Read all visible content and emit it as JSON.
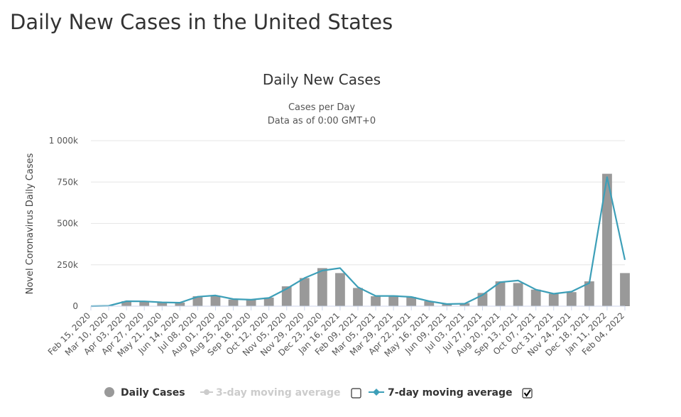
{
  "page": {
    "title": "Daily New Cases in the United States"
  },
  "chart_data": {
    "type": "bar",
    "title": "Daily New Cases",
    "subtitle_lines": [
      "Cases per Day",
      "Data as of 0:00 GMT+0"
    ],
    "ylabel": "Novel Coronavirus Daily Cases",
    "xlabel": "",
    "ylim": [
      0,
      1000000
    ],
    "y_ticks": [
      0,
      250000,
      500000,
      750000,
      1000000
    ],
    "y_tick_labels": [
      "0",
      "250k",
      "500k",
      "750k",
      "1 000k"
    ],
    "x_tick_labels": [
      "Feb 15, 2020",
      "Mar 10, 2020",
      "Apr 03, 2020",
      "Apr 27, 2020",
      "May 21, 2020",
      "Jun 14, 2020",
      "Jul 08, 2020",
      "Aug 01, 2020",
      "Aug 25, 2020",
      "Sep 18, 2020",
      "Oct 12, 2020",
      "Nov 05, 2020",
      "Nov 29, 2020",
      "Dec 23, 2020",
      "Jan 16, 2021",
      "Feb 09, 2021",
      "Mar 05, 2021",
      "Mar 29, 2021",
      "Apr 22, 2021",
      "May 16, 2021",
      "Jun 09, 2021",
      "Jul 03, 2021",
      "Jul 27, 2021",
      "Aug 20, 2021",
      "Sep 13, 2021",
      "Oct 07, 2021",
      "Oct 31, 2021",
      "Nov 24, 2021",
      "Dec 18, 2021",
      "Jan 11, 2022",
      "Feb 04, 2022"
    ],
    "grid": true,
    "legend_position": "bottom",
    "series": [
      {
        "name": "Daily Cases",
        "kind": "bar",
        "color": "#999999",
        "x": [
          "Feb 15, 2020",
          "Mar 10, 2020",
          "Apr 03, 2020",
          "Apr 27, 2020",
          "May 21, 2020",
          "Jun 14, 2020",
          "Jul 08, 2020",
          "Aug 01, 2020",
          "Aug 25, 2020",
          "Sep 18, 2020",
          "Oct 12, 2020",
          "Nov 05, 2020",
          "Nov 29, 2020",
          "Dec 23, 2020",
          "Jan 16, 2021",
          "Feb 09, 2021",
          "Mar 05, 2021",
          "Mar 29, 2021",
          "Apr 22, 2021",
          "May 16, 2021",
          "Jun 09, 2021",
          "Jul 03, 2021",
          "Jul 27, 2021",
          "Aug 20, 2021",
          "Sep 13, 2021",
          "Oct 07, 2021",
          "Oct 31, 2021",
          "Nov 24, 2021",
          "Dec 18, 2021",
          "Jan 11, 2022",
          "Feb 04, 2022"
        ],
        "values": [
          0,
          3000,
          30000,
          28000,
          22000,
          22000,
          60000,
          62000,
          40000,
          42000,
          52000,
          120000,
          170000,
          230000,
          200000,
          110000,
          60000,
          65000,
          55000,
          30000,
          12000,
          18000,
          80000,
          150000,
          140000,
          100000,
          75000,
          85000,
          150000,
          800000,
          200000
        ]
      },
      {
        "name": "3-day moving average",
        "kind": "line",
        "color": "#cccccc",
        "visible": false
      },
      {
        "name": "7-day moving average",
        "kind": "line",
        "color": "#3d9fb8",
        "visible": true,
        "x": [
          "Feb 15, 2020",
          "Mar 10, 2020",
          "Apr 03, 2020",
          "Apr 27, 2020",
          "May 21, 2020",
          "Jun 14, 2020",
          "Jul 08, 2020",
          "Aug 01, 2020",
          "Aug 25, 2020",
          "Sep 18, 2020",
          "Oct 12, 2020",
          "Nov 05, 2020",
          "Nov 29, 2020",
          "Dec 23, 2020",
          "Jan 16, 2021",
          "Feb 09, 2021",
          "Mar 05, 2021",
          "Mar 29, 2021",
          "Apr 22, 2021",
          "May 16, 2021",
          "Jun 09, 2021",
          "Jul 03, 2021",
          "Jul 27, 2021",
          "Aug 20, 2021",
          "Sep 13, 2021",
          "Oct 07, 2021",
          "Oct 31, 2021",
          "Nov 24, 2021",
          "Dec 18, 2021",
          "Jan 11, 2022",
          "Feb 04, 2022"
        ],
        "values": [
          0,
          2000,
          30000,
          29000,
          23000,
          21000,
          57000,
          65000,
          43000,
          39000,
          50000,
          105000,
          170000,
          215000,
          230000,
          115000,
          62000,
          62000,
          56000,
          30000,
          13000,
          15000,
          68000,
          145000,
          155000,
          100000,
          75000,
          88000,
          140000,
          780000,
          280000
        ]
      }
    ]
  },
  "legend": {
    "daily_cases": "Daily Cases",
    "three_day": "3-day moving average",
    "seven_day": "7-day moving average"
  },
  "colors": {
    "bar": "#999999",
    "line7": "#3d9fb8",
    "line3_hidden": "#cccccc",
    "grid": "#e6e6e6",
    "axis": "#ccd6eb"
  }
}
